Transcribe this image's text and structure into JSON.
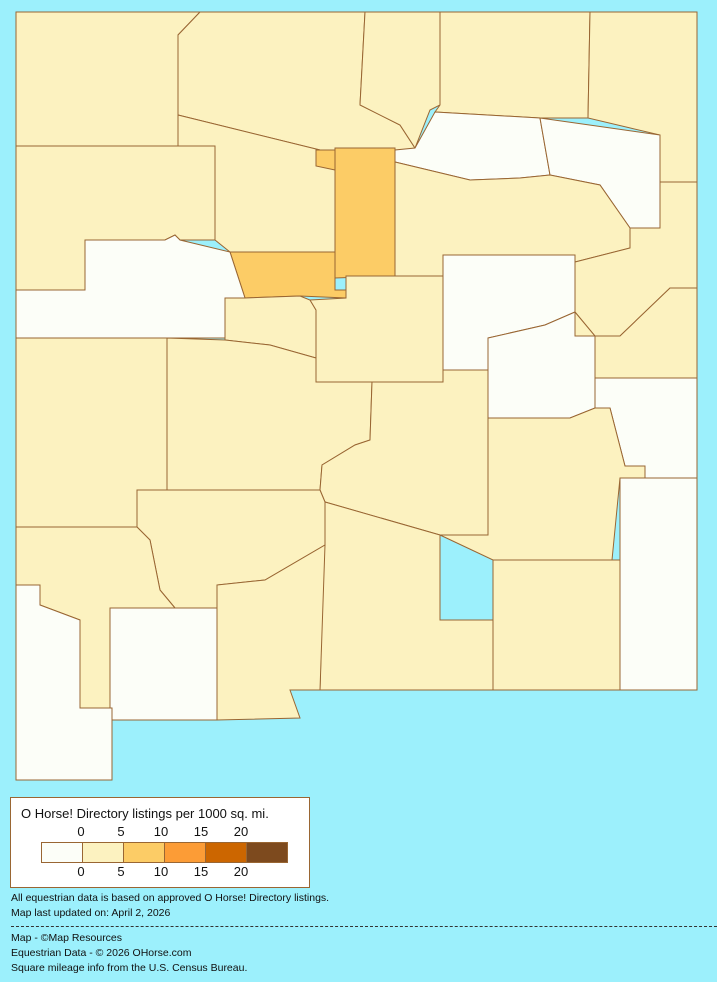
{
  "colors": {
    "background": "#9cf0fc",
    "border": "#996633",
    "level_0": "#fcfef8",
    "level_1": "#fcf2c0",
    "level_2": "#fccc66",
    "level_3": "#fc9c36",
    "level_4": "#cc6600",
    "level_5": "#7d4a1e"
  },
  "legend": {
    "title": "O Horse! Directory listings per 1000 sq. mi.",
    "ticks_top": [
      "0",
      "5",
      "10",
      "15",
      "20"
    ],
    "ticks_bottom": [
      "0",
      "5",
      "10",
      "15",
      "20"
    ]
  },
  "notes": {
    "data_basis": "All equestrian data is based on approved O Horse! Directory listings.",
    "updated": "Map last updated on: April 2, 2026"
  },
  "credits": {
    "map": "Map - ©Map Resources",
    "data": "Equestrian Data - © 2026 OHorse.com",
    "census": "Square mileage info from the U.S. Census Bureau."
  }
}
